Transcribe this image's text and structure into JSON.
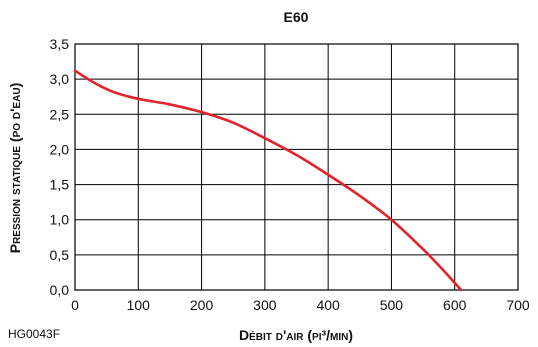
{
  "chart_data": {
    "type": "line",
    "title": "E60",
    "xlabel": "Débit d'air (pi³/min)",
    "ylabel": "Pression statique (po d'eau)",
    "xlim": [
      0,
      700
    ],
    "ylim": [
      0,
      3.5
    ],
    "x_ticks": [
      "0",
      "100",
      "200",
      "300",
      "400",
      "500",
      "600",
      "700"
    ],
    "y_ticks": [
      "0,0",
      "0,5",
      "1,0",
      "1,5",
      "2,0",
      "2,5",
      "3,0",
      "3,5"
    ],
    "grid": true,
    "series": [
      {
        "color": "#e0242a",
        "points": [
          [
            0,
            3.12
          ],
          [
            30,
            2.95
          ],
          [
            60,
            2.82
          ],
          [
            100,
            2.72
          ],
          [
            150,
            2.64
          ],
          [
            200,
            2.53
          ],
          [
            250,
            2.38
          ],
          [
            300,
            2.16
          ],
          [
            350,
            1.92
          ],
          [
            400,
            1.64
          ],
          [
            450,
            1.34
          ],
          [
            500,
            1.0
          ],
          [
            550,
            0.58
          ],
          [
            580,
            0.3
          ],
          [
            610,
            0.0
          ]
        ]
      }
    ]
  },
  "figure_code": "HG0043F"
}
